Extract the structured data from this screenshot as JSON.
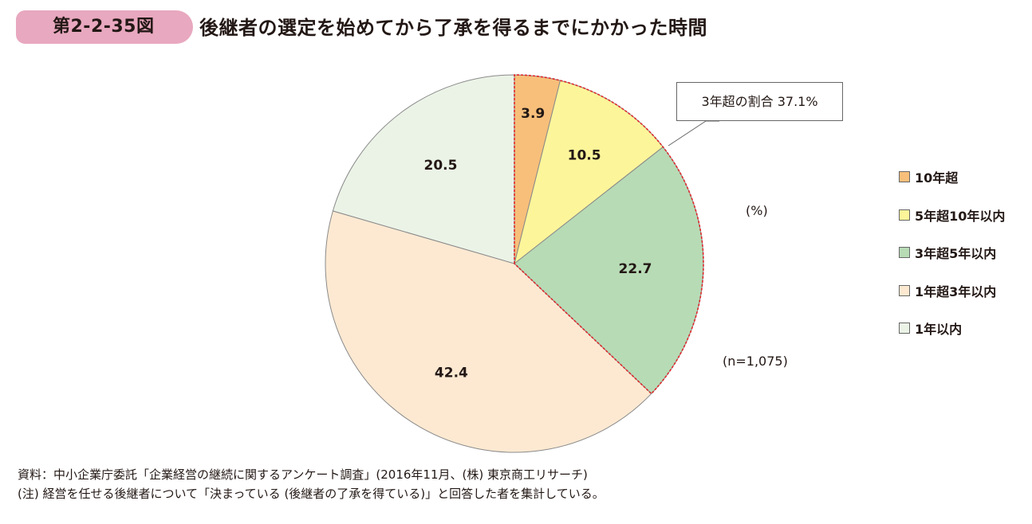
{
  "header": {
    "figure_label": "第2-2-35図",
    "title": "後継者の選定を始めてから了承を得るまでにかかった時間"
  },
  "callout": "3年超の割合 37.1%",
  "unit_label": "(%)",
  "sample_label": "(n=1,075)",
  "notes": {
    "source": "資料：中小企業庁委託「企業経営の継続に関するアンケート調査」(2016年11月、(株) 東京商工リサーチ)",
    "note": "(注) 経営を任せる後継者について「決まっている (後継者の了承を得ている)」と回答した者を集計している。"
  },
  "colors": {
    "slice_edge": "#8a8a8a",
    "highlight_border": "#e0262a",
    "figure_label_bg": "#e8a8bf"
  },
  "chart_data": {
    "type": "pie",
    "unit": "%",
    "start_angle_deg": 0,
    "direction": "clockwise",
    "slices": [
      {
        "label": "10年超",
        "value": 3.9,
        "color": "#f7bf7a"
      },
      {
        "label": "5年超10年以内",
        "value": 10.5,
        "color": "#fcf59a"
      },
      {
        "label": "3年超5年以内",
        "value": 22.7,
        "color": "#b7dbb5"
      },
      {
        "label": "1年超3年以内",
        "value": 42.4,
        "color": "#fde9d2"
      },
      {
        "label": "1年以内",
        "value": 20.5,
        "color": "#ebf3e7"
      }
    ],
    "highlight": {
      "slices": [
        0,
        1,
        2
      ],
      "total": 37.1
    },
    "legend_position": "right"
  }
}
